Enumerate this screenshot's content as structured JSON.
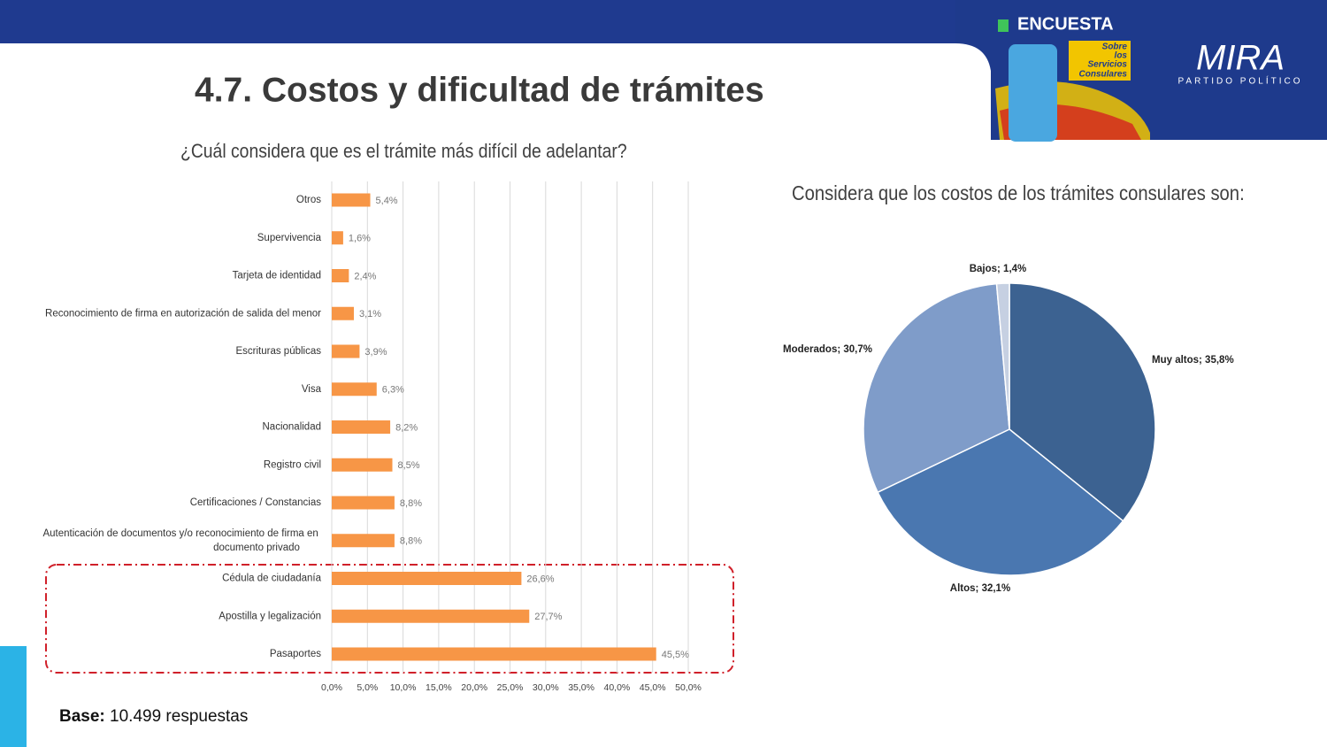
{
  "header": {
    "title": "4.7. Costos y dificultad de trámites",
    "brand": "ENCUESTA",
    "badge": [
      "Sobre",
      "los",
      "Servicios",
      "Consulares"
    ],
    "logo": "MIRA",
    "logo_sub": "PARTIDO POLÍTICO"
  },
  "footer": {
    "base_label": "Base:",
    "base_text": "10.499 respuestas"
  },
  "chart_data": [
    {
      "type": "hbar",
      "title": "¿Cuál considera que es el trámite más difícil de adelantar?",
      "categories": [
        "Otros",
        "Supervivencia",
        "Tarjeta de identidad",
        "Reconocimiento de firma en autorización de salida del menor",
        "Escrituras públicas",
        "Visa",
        "Nacionalidad",
        "Registro civil",
        "Certificaciones / Constancias",
        "Autenticación de documentos y/o reconocimiento de firma en documento privado",
        "Cédula de ciudadanía",
        "Apostilla y legalización",
        "Pasaportes"
      ],
      "values": [
        5.4,
        1.6,
        2.4,
        3.1,
        3.9,
        6.3,
        8.2,
        8.5,
        8.8,
        8.8,
        26.6,
        27.7,
        45.5
      ],
      "value_labels": [
        "5,4%",
        "1,6%",
        "2,4%",
        "3,1%",
        "3,9%",
        "6,3%",
        "8,2%",
        "8,5%",
        "8,8%",
        "8,8%",
        "26,6%",
        "27,7%",
        "45,5%"
      ],
      "color": "#f79646",
      "xlim": [
        0,
        50
      ],
      "xticks": [
        {
          "value": 0,
          "label": "0,0%"
        },
        {
          "value": 5,
          "label": "5,0%"
        },
        {
          "value": 10,
          "label": "10,0%"
        },
        {
          "value": 15,
          "label": "15,0%"
        },
        {
          "value": 20,
          "label": "20,0%"
        },
        {
          "value": 25,
          "label": "25,0%"
        },
        {
          "value": 30,
          "label": "30,0%"
        },
        {
          "value": 35,
          "label": "35,0%"
        },
        {
          "value": 40,
          "label": "40,0%"
        },
        {
          "value": 45,
          "label": "45,0%"
        },
        {
          "value": 50,
          "label": "50,0%"
        }
      ],
      "grid": true
    },
    {
      "type": "pie",
      "title": "Considera que los costos de los trámites consulares son:",
      "values": [
        35.8,
        32.1,
        30.7,
        1.4
      ],
      "value_labels": [
        "Muy altos; 35,8%",
        "Altos; 32,1%",
        "Moderados; 30,7%",
        "Bajos; 1,4%"
      ],
      "colors": [
        "#3c6291",
        "#4a77b0",
        "#7f9cc9",
        "#c6d0e2"
      ]
    }
  ]
}
